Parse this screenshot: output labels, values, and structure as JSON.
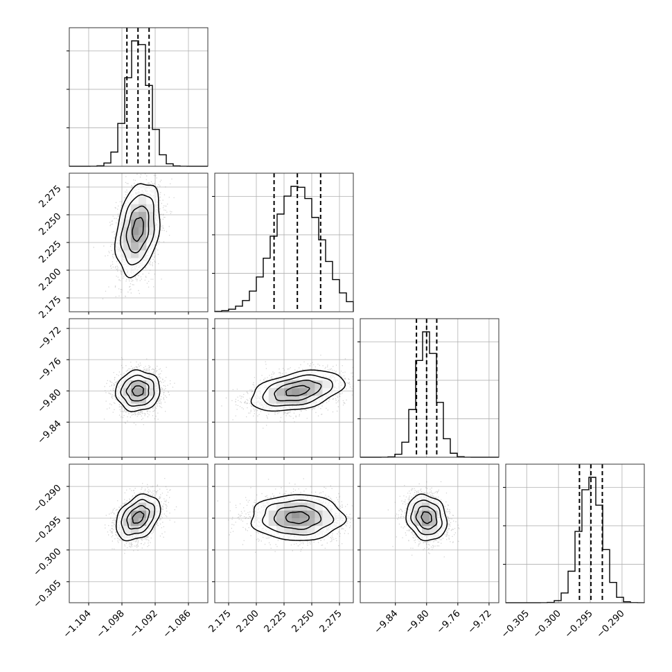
{
  "chart_data": {
    "type": "corner",
    "parameters": [
      {
        "index": 0,
        "median": -1.0951,
        "q16": -1.0971,
        "q84": -1.0931,
        "sigma": 0.002,
        "range": [
          -1.1075,
          -1.0825
        ],
        "ticks": [
          "−1.104",
          "−1.098",
          "−1.092",
          "−1.086"
        ],
        "tick_values": [
          -1.104,
          -1.098,
          -1.092,
          -1.086
        ]
      },
      {
        "index": 1,
        "median": 2.237,
        "q16": 2.216,
        "q84": 2.258,
        "sigma": 0.021,
        "range": [
          2.1625,
          2.2875
        ],
        "ticks": [
          "2.175",
          "2.200",
          "2.225",
          "2.250",
          "2.275"
        ],
        "tick_values": [
          2.175,
          2.2,
          2.225,
          2.25,
          2.275
        ]
      },
      {
        "index": 2,
        "median": -9.8,
        "q16": -9.813,
        "q84": -9.787,
        "sigma": 0.013,
        "range": [
          -9.885,
          -9.7075
        ],
        "ticks": [
          "−9.84",
          "−9.80",
          "−9.76",
          "−9.72"
        ],
        "tick_values": [
          -9.84,
          -9.8,
          -9.76,
          -9.72
        ]
      },
      {
        "index": 3,
        "median": -0.2949,
        "q16": -0.2967,
        "q84": -0.2931,
        "sigma": 0.0018,
        "range": [
          -0.3083,
          -0.2865
        ],
        "ticks": [
          "−0.305",
          "−0.300",
          "−0.295",
          "−0.290"
        ],
        "tick_values": [
          -0.305,
          -0.3,
          -0.295,
          -0.29
        ]
      }
    ],
    "correlations": [
      {
        "pair": [
          0,
          1
        ],
        "rho": 0.3
      },
      {
        "pair": [
          0,
          2
        ],
        "rho": 0.05
      },
      {
        "pair": [
          1,
          2
        ],
        "rho": 0.4
      },
      {
        "pair": [
          0,
          3
        ],
        "rho": 0.35
      },
      {
        "pair": [
          1,
          3
        ],
        "rho": 0.0
      },
      {
        "pair": [
          2,
          3
        ],
        "rho": -0.15
      }
    ],
    "histogram_bins": 20,
    "quantile_lines": "dashed",
    "contour_levels": 4,
    "grid": true,
    "colors": {
      "line": "#000000",
      "grid": "#b0b0b0",
      "points": "#808080"
    }
  }
}
